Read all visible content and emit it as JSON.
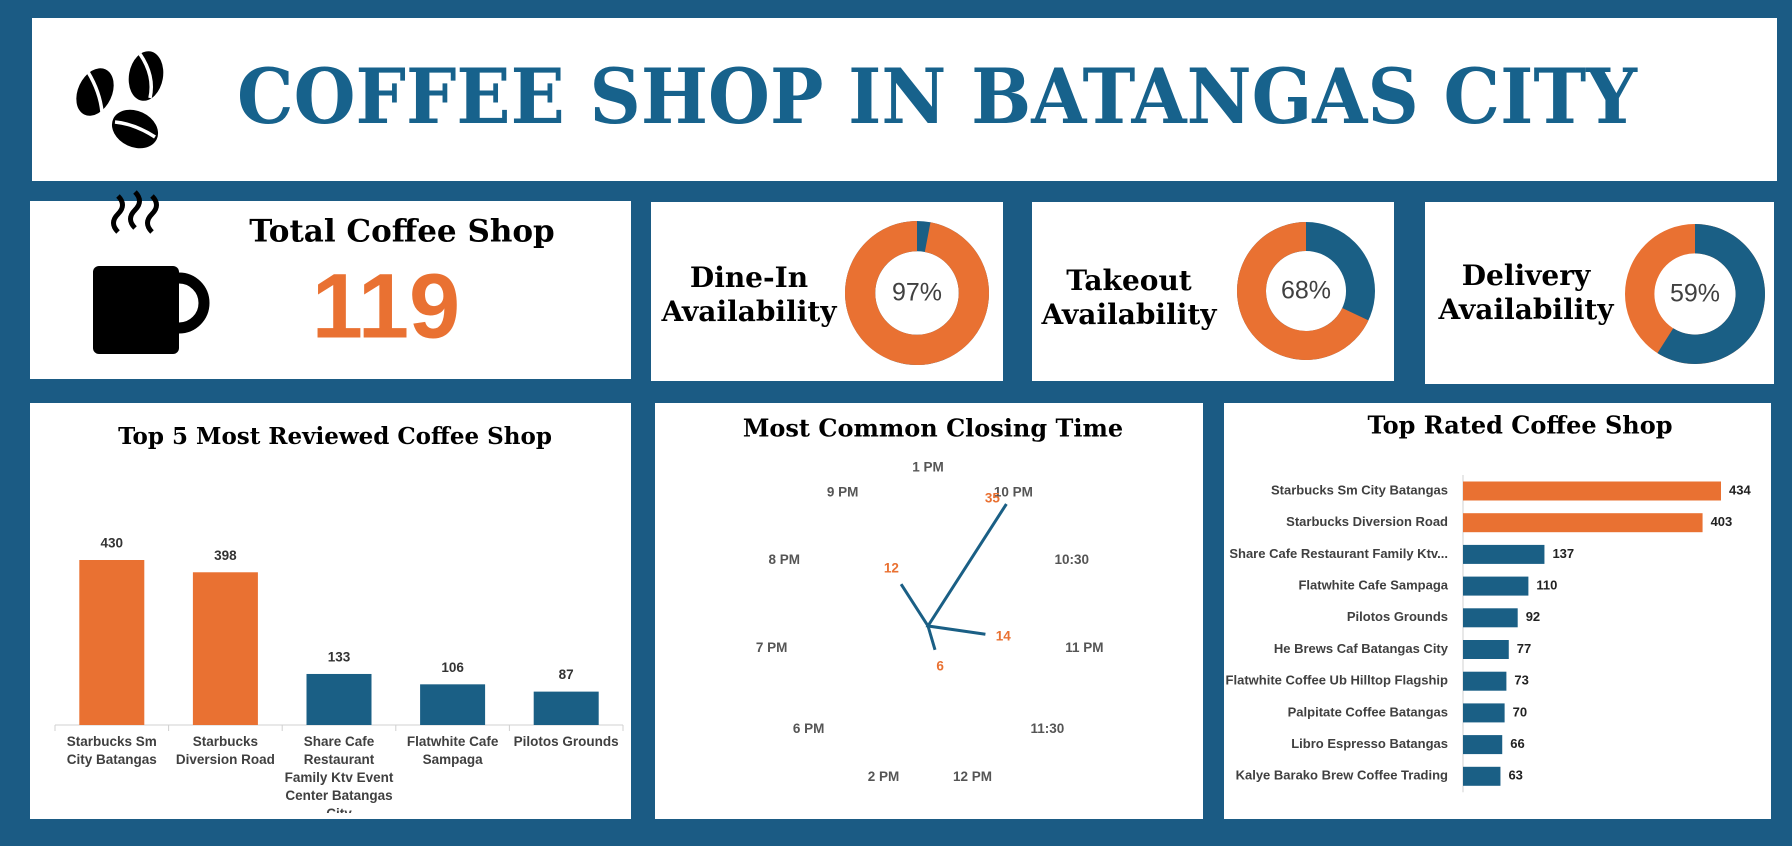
{
  "header": {
    "title": "COFFEE SHOP IN BATANGAS CITY"
  },
  "kpi": {
    "label": "Total Coffee Shop",
    "value": 119
  },
  "chart_data": [
    {
      "type": "donut",
      "title": "Dine-In Availability",
      "values": [
        97
      ],
      "value_labels": [
        "97%"
      ],
      "color": "#e97132",
      "track_color": "#1a5f85",
      "clockwise": false
    },
    {
      "type": "donut",
      "title": "Takeout Availability",
      "values": [
        68
      ],
      "value_labels": [
        "68%"
      ],
      "color": "#e97132",
      "track_color": "#1a5f85",
      "clockwise": false
    },
    {
      "type": "donut",
      "title": "Delivery Availability",
      "values": [
        59
      ],
      "value_labels": [
        "59%"
      ],
      "color": "#1a5f85",
      "track_color": "#e97132",
      "clockwise": true
    },
    {
      "type": "bar",
      "title": "Top 5 Most Reviewed Coffee Shop",
      "categories": [
        "Starbucks Sm City Batangas",
        "Starbucks Diversion Road",
        "Share Cafe Restaurant Family Ktv Event Center Batangas City",
        "Flatwhite Cafe Sampaga",
        "Pilotos Grounds"
      ],
      "values": [
        430,
        398,
        133,
        106,
        87
      ],
      "colors": [
        "#e97132",
        "#e97132",
        "#1a5f85",
        "#1a5f85",
        "#1a5f85"
      ]
    },
    {
      "type": "radar",
      "title": "Most Common Closing Time",
      "categories": [
        "1 PM",
        "10 PM",
        "10:30",
        "11 PM",
        "11:30",
        "12 PM",
        "2 PM",
        "6 PM",
        "7 PM",
        "8 PM",
        "9 PM"
      ],
      "values": [
        0,
        35,
        0,
        14,
        0,
        6,
        0,
        0,
        0,
        0,
        12
      ],
      "color": "#1a5f85",
      "label_color": "#e97132"
    },
    {
      "type": "hbar",
      "title": "Top Rated Coffee Shop",
      "categories": [
        "Starbucks Sm City Batangas",
        "Starbucks Diversion Road",
        "Share Cafe Restaurant Family Ktv...",
        "Flatwhite Cafe Sampaga",
        "Pilotos Grounds",
        "He Brews Caf Batangas City",
        "Flatwhite Coffee Ub Hilltop Flagship",
        "Palpitate Coffee Batangas",
        "Libro Espresso Batangas",
        "Kalye Barako Brew Coffee Trading"
      ],
      "values": [
        434,
        403,
        137,
        110,
        92,
        77,
        73,
        70,
        66,
        63
      ],
      "colors": [
        "#e97132",
        "#e97132",
        "#1a5f85",
        "#1a5f85",
        "#1a5f85",
        "#1a5f85",
        "#1a5f85",
        "#1a5f85",
        "#1a5f85",
        "#1a5f85"
      ]
    }
  ]
}
